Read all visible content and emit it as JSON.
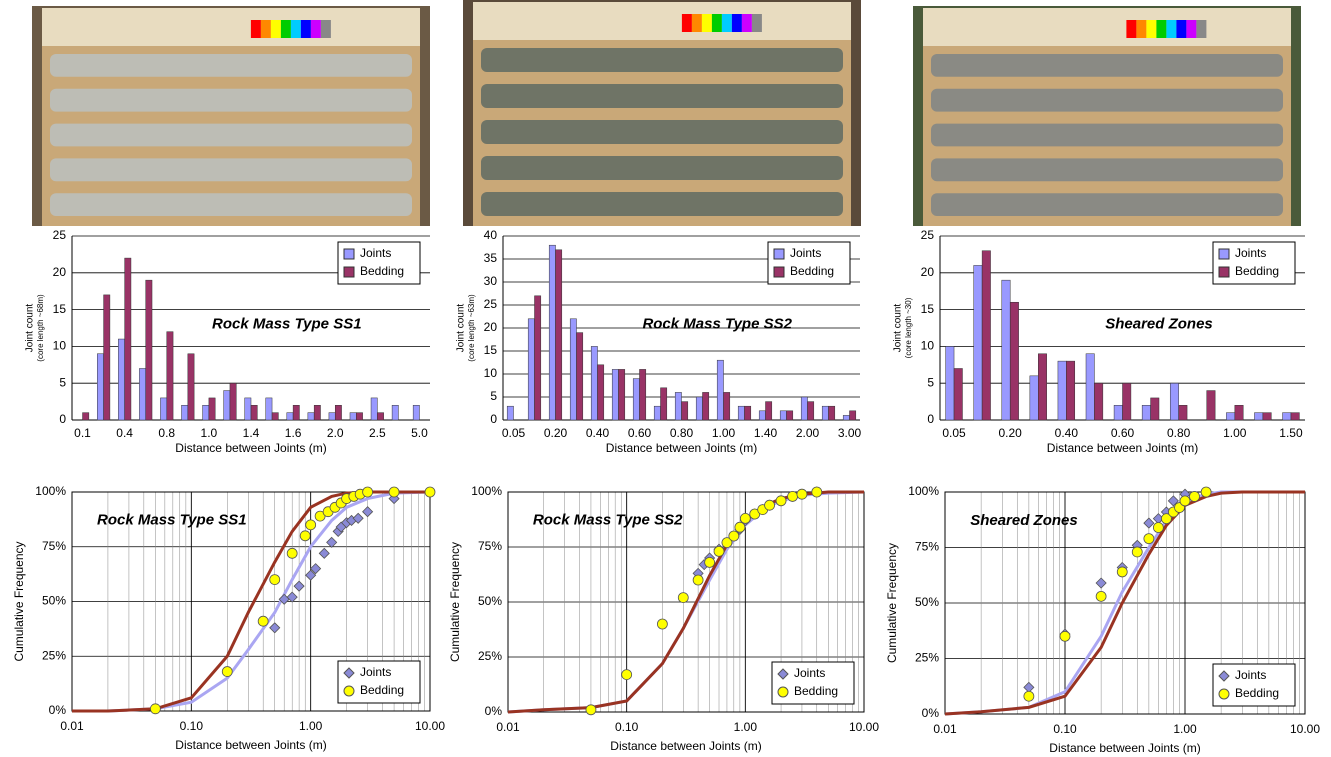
{
  "chart_data": [
    {
      "type": "bar",
      "title": "Rock Mass Type SS1",
      "x_label": "Distance between Joints (m)",
      "y_label": "Joint count",
      "y_sublabel": "(core length ~68m)",
      "categories": [
        "0.1",
        null,
        "0.4",
        null,
        "0.8",
        null,
        "1.0",
        null,
        "1.4",
        null,
        "1.6",
        null,
        "2.0",
        null,
        "2.5",
        null,
        "5.0"
      ],
      "series": [
        {
          "name": "Joints",
          "color": "#9999ff",
          "values": [
            0,
            9,
            11,
            7,
            3,
            2,
            2,
            4,
            3,
            3,
            1,
            1,
            1,
            1,
            3,
            2,
            2
          ]
        },
        {
          "name": "Bedding",
          "color": "#993366",
          "values": [
            1,
            17,
            22,
            19,
            12,
            9,
            3,
            5,
            2,
            1,
            2,
            2,
            2,
            1,
            1,
            0,
            0
          ]
        }
      ],
      "ylim": [
        0,
        25
      ],
      "yticks": [
        0,
        5,
        10,
        15,
        20,
        25
      ],
      "grid": true,
      "legend": "upper right"
    },
    {
      "type": "bar",
      "title": "Rock Mass Type SS2",
      "x_label": "Distance between Joints (m)",
      "y_label": "Joint count",
      "y_sublabel": "(core length ~63m)",
      "categories": [
        "0.05",
        null,
        "0.20",
        null,
        "0.40",
        null,
        "0.60",
        null,
        "0.80",
        null,
        "1.00",
        null,
        "1.40",
        null,
        "2.00",
        null,
        "3.00"
      ],
      "series": [
        {
          "name": "Joints",
          "color": "#9999ff",
          "values": [
            3,
            22,
            38,
            22,
            16,
            11,
            9,
            3,
            6,
            5,
            13,
            3,
            2,
            2,
            5,
            3,
            1
          ]
        },
        {
          "name": "Bedding",
          "color": "#993366",
          "values": [
            0,
            27,
            37,
            19,
            12,
            11,
            11,
            7,
            4,
            6,
            6,
            3,
            4,
            2,
            4,
            3,
            2
          ]
        }
      ],
      "ylim": [
        0,
        40
      ],
      "yticks": [
        0,
        5,
        10,
        15,
        20,
        25,
        30,
        35,
        40
      ],
      "grid": true,
      "legend": "upper right"
    },
    {
      "type": "bar",
      "title": "Sheared Zones",
      "x_label": "Distance between Joints (m)",
      "y_label": "Joint count",
      "y_sublabel": "(core length ~30)",
      "categories": [
        "0.05",
        null,
        "0.20",
        null,
        "0.40",
        null,
        "0.60",
        null,
        "0.80",
        null,
        "1.00",
        null,
        "1.50"
      ],
      "series": [
        {
          "name": "Joints",
          "color": "#9999ff",
          "values": [
            10,
            21,
            19,
            6,
            8,
            9,
            2,
            2,
            5,
            0,
            1,
            1,
            1
          ]
        },
        {
          "name": "Bedding",
          "color": "#993366",
          "values": [
            7,
            23,
            16,
            9,
            8,
            5,
            5,
            3,
            2,
            4,
            2,
            1,
            1
          ]
        }
      ],
      "ylim": [
        0,
        25
      ],
      "yticks": [
        0,
        5,
        10,
        15,
        20,
        25
      ],
      "grid": true,
      "legend": "upper right"
    },
    {
      "type": "scatter",
      "title": "Rock Mass Type SS1",
      "x_label": "Distance between Joints (m)",
      "y_label": "Cumulative Frequency",
      "log_x": true,
      "xlim": [
        0.01,
        10
      ],
      "xticks": [
        {
          "value": 0.01,
          "label": "0.01"
        },
        {
          "value": 0.1,
          "label": "0.10"
        },
        {
          "value": 1,
          "label": "1.00"
        },
        {
          "value": 10,
          "label": "10.00"
        }
      ],
      "ylim": [
        0,
        100
      ],
      "yticks": [
        {
          "value": 0,
          "label": "0%"
        },
        {
          "value": 25,
          "label": "25%"
        },
        {
          "value": 50,
          "label": "50%"
        },
        {
          "value": 75,
          "label": "75%"
        },
        {
          "value": 100,
          "label": "100%"
        }
      ],
      "grid": true,
      "legend": "lower right",
      "series": [
        {
          "style": "line",
          "color": "#aaa6f2",
          "x": [
            0.01,
            0.02,
            0.05,
            0.1,
            0.2,
            0.3,
            0.5,
            0.7,
            1,
            1.5,
            2,
            3,
            5,
            10
          ],
          "values": [
            0,
            0,
            1,
            4,
            15,
            28,
            45,
            60,
            75,
            87,
            93,
            97,
            99.5,
            100
          ]
        },
        {
          "style": "line",
          "color": "#993322",
          "x": [
            0.01,
            0.02,
            0.05,
            0.1,
            0.2,
            0.3,
            0.5,
            0.7,
            1,
            1.5,
            2,
            3,
            5,
            10
          ],
          "values": [
            0,
            0,
            1,
            6,
            25,
            45,
            68,
            82,
            93,
            98,
            99.5,
            100,
            100,
            100
          ]
        },
        {
          "name": "Joints",
          "marker": "diamond",
          "color": "#8a8ad6",
          "x": [
            0.5,
            0.6,
            0.7,
            0.8,
            1.0,
            1.1,
            1.3,
            1.5,
            1.7,
            1.8,
            2.0,
            2.2,
            2.5,
            3.0,
            5.0
          ],
          "values": [
            38,
            51,
            52,
            57,
            62,
            65,
            72,
            77,
            82,
            84,
            86,
            87,
            88,
            91,
            97
          ]
        },
        {
          "name": "Bedding",
          "marker": "circle",
          "color": "#ffff00",
          "x": [
            0.05,
            0.2,
            0.4,
            0.5,
            0.7,
            0.9,
            1.0,
            1.2,
            1.4,
            1.6,
            1.8,
            2.0,
            2.3,
            2.6,
            3.0,
            5.0,
            10
          ],
          "values": [
            1,
            18,
            41,
            60,
            72,
            80,
            85,
            89,
            91,
            93,
            95,
            97,
            98,
            99,
            100,
            100,
            100
          ]
        }
      ]
    },
    {
      "type": "scatter",
      "title": "Rock Mass Type SS2",
      "x_label": "Distance between Joints (m)",
      "y_label": "Cumulative Frequency",
      "log_x": true,
      "xlim": [
        0.01,
        10
      ],
      "xticks": [
        {
          "value": 0.01,
          "label": "0.01"
        },
        {
          "value": 0.1,
          "label": "0.10"
        },
        {
          "value": 1,
          "label": "1.00"
        },
        {
          "value": 10,
          "label": "10.00"
        }
      ],
      "ylim": [
        0,
        100
      ],
      "yticks": [
        {
          "value": 0,
          "label": "0%"
        },
        {
          "value": 25,
          "label": "25%"
        },
        {
          "value": 50,
          "label": "50%"
        },
        {
          "value": 75,
          "label": "75%"
        },
        {
          "value": 100,
          "label": "100%"
        }
      ],
      "grid": true,
      "legend": "lower right",
      "series": [
        {
          "style": "line",
          "color": "#aaa6f2",
          "x": [
            0.01,
            0.02,
            0.05,
            0.1,
            0.2,
            0.3,
            0.5,
            0.7,
            1,
            1.5,
            2,
            3,
            5,
            10
          ],
          "values": [
            0,
            1,
            2,
            5,
            22,
            38,
            60,
            74,
            85,
            93,
            96,
            98.5,
            99.5,
            100
          ]
        },
        {
          "style": "line",
          "color": "#993322",
          "x": [
            0.01,
            0.02,
            0.05,
            0.1,
            0.2,
            0.3,
            0.5,
            0.7,
            1,
            1.5,
            2,
            3,
            5,
            10
          ],
          "values": [
            0,
            1,
            2,
            5,
            22,
            38,
            62,
            76,
            87,
            94,
            97,
            99,
            100,
            100
          ]
        },
        {
          "name": "Joints",
          "marker": "diamond",
          "color": "#8a8ad6",
          "x": [
            0.4,
            0.45,
            0.5,
            0.6,
            0.7,
            0.8,
            0.9,
            1.0,
            1.2,
            1.4,
            1.6,
            2.0,
            2.5,
            3.0,
            4.0
          ],
          "values": [
            63,
            67,
            70,
            74,
            77,
            80,
            83,
            87,
            90,
            92,
            94,
            96,
            98,
            99,
            100
          ]
        },
        {
          "name": "Bedding",
          "marker": "circle",
          "color": "#ffff00",
          "x": [
            0.05,
            0.1,
            0.2,
            0.3,
            0.4,
            0.5,
            0.6,
            0.7,
            0.8,
            0.9,
            1.0,
            1.2,
            1.4,
            1.6,
            2.0,
            2.5,
            3.0,
            4.0
          ],
          "values": [
            1,
            17,
            40,
            52,
            60,
            68,
            73,
            77,
            80,
            84,
            88,
            90,
            92,
            94,
            96,
            98,
            99,
            100
          ]
        }
      ]
    },
    {
      "type": "scatter",
      "title": "Sheared Zones",
      "x_label": "Distance between Joints (m)",
      "y_label": "Cumulative Frequency",
      "log_x": true,
      "xlim": [
        0.01,
        10
      ],
      "xticks": [
        {
          "value": 0.01,
          "label": "0.01"
        },
        {
          "value": 0.1,
          "label": "0.10"
        },
        {
          "value": 1,
          "label": "1.00"
        },
        {
          "value": 10,
          "label": "10.00"
        }
      ],
      "ylim": [
        0,
        100
      ],
      "yticks": [
        {
          "value": 0,
          "label": "0%"
        },
        {
          "value": 25,
          "label": "25%"
        },
        {
          "value": 50,
          "label": "50%"
        },
        {
          "value": 75,
          "label": "75%"
        },
        {
          "value": 100,
          "label": "100%"
        }
      ],
      "grid": true,
      "legend": "lower right",
      "series": [
        {
          "style": "line",
          "color": "#aaa6f2",
          "x": [
            0.01,
            0.02,
            0.05,
            0.1,
            0.2,
            0.3,
            0.5,
            0.7,
            1,
            1.5,
            2,
            3,
            5,
            10
          ],
          "values": [
            0,
            1,
            3,
            10,
            35,
            55,
            75,
            87,
            96,
            99,
            100,
            100,
            100,
            100
          ]
        },
        {
          "style": "line",
          "color": "#993322",
          "x": [
            0.01,
            0.02,
            0.05,
            0.1,
            0.2,
            0.3,
            0.5,
            0.7,
            1,
            1.5,
            2,
            3,
            5,
            10
          ],
          "values": [
            0,
            1,
            3,
            8,
            30,
            50,
            72,
            85,
            94,
            98,
            99.5,
            100,
            100,
            100
          ]
        },
        {
          "name": "Joints",
          "marker": "diamond",
          "color": "#8a8ad6",
          "x": [
            0.05,
            0.1,
            0.2,
            0.3,
            0.4,
            0.5,
            0.6,
            0.7,
            0.8,
            1.0
          ],
          "values": [
            12,
            36,
            59,
            66,
            76,
            86,
            88,
            91,
            96,
            99
          ]
        },
        {
          "name": "Bedding",
          "marker": "circle",
          "color": "#ffff00",
          "x": [
            0.05,
            0.1,
            0.2,
            0.3,
            0.4,
            0.5,
            0.6,
            0.7,
            0.8,
            0.9,
            1.0,
            1.2,
            1.5
          ],
          "values": [
            8,
            35,
            53,
            64,
            73,
            79,
            84,
            88,
            91,
            93,
            96,
            98,
            100
          ]
        }
      ]
    }
  ]
}
